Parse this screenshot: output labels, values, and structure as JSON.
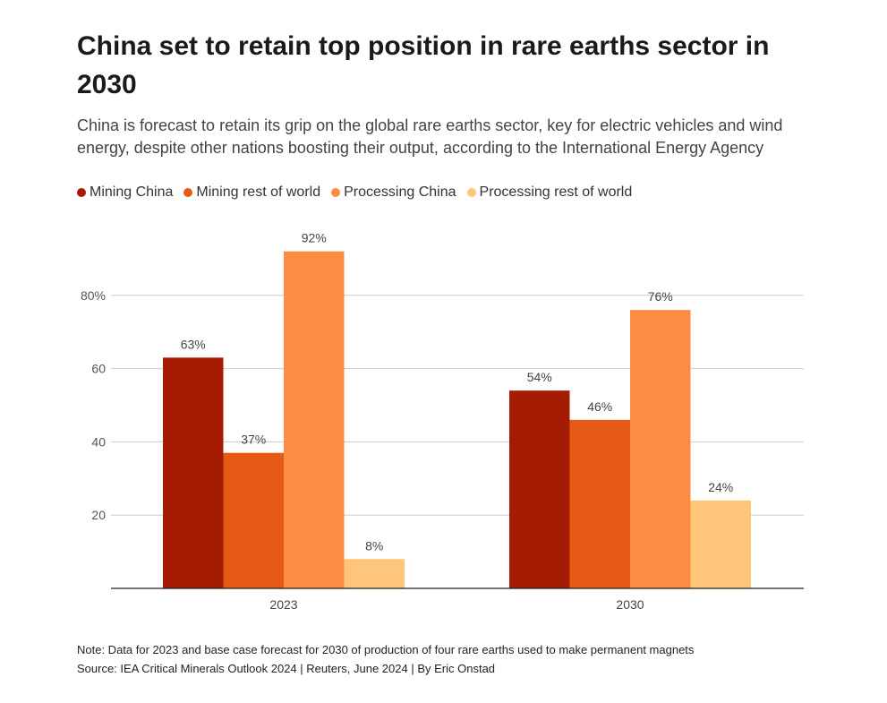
{
  "title": "China set to retain top position in rare earths sector in 2030",
  "subtitle": "China is forecast to retain its grip on the global rare earths sector, key for electric vehicles and wind energy, despite other nations boosting their output, according to the International Energy Agency",
  "note": "Note: Data for 2023 and base case forecast for 2030 of production of four rare earths used to make permanent magnets",
  "source": "Source: IEA Critical Minerals Outlook 2024 | Reuters, June 2024 | By Eric Onstad",
  "chart_data": {
    "type": "bar",
    "title": "China set to retain top position in rare earths sector in 2030",
    "xlabel": "",
    "ylabel": "",
    "ylim": [
      0,
      100
    ],
    "yticks": [
      {
        "value": 20,
        "label": "20"
      },
      {
        "value": 40,
        "label": "40"
      },
      {
        "value": 60,
        "label": "60"
      },
      {
        "value": 80,
        "label": "80%"
      }
    ],
    "grid": true,
    "legend_position": "top-left",
    "categories": [
      "2023",
      "2030"
    ],
    "series": [
      {
        "name": "Mining China",
        "color": "#a51c05",
        "values": [
          63,
          54
        ],
        "labels": [
          "63%",
          "54%"
        ]
      },
      {
        "name": "Mining rest of world",
        "color": "#e55a14",
        "values": [
          37,
          46
        ],
        "labels": [
          "37%",
          "46%"
        ]
      },
      {
        "name": "Processing China",
        "color": "#fd8d45",
        "values": [
          92,
          76
        ],
        "labels": [
          "92%",
          "76%"
        ]
      },
      {
        "name": "Processing rest of world",
        "color": "#fec57b",
        "values": [
          8,
          24
        ],
        "labels": [
          "8%",
          "24%"
        ]
      }
    ]
  }
}
